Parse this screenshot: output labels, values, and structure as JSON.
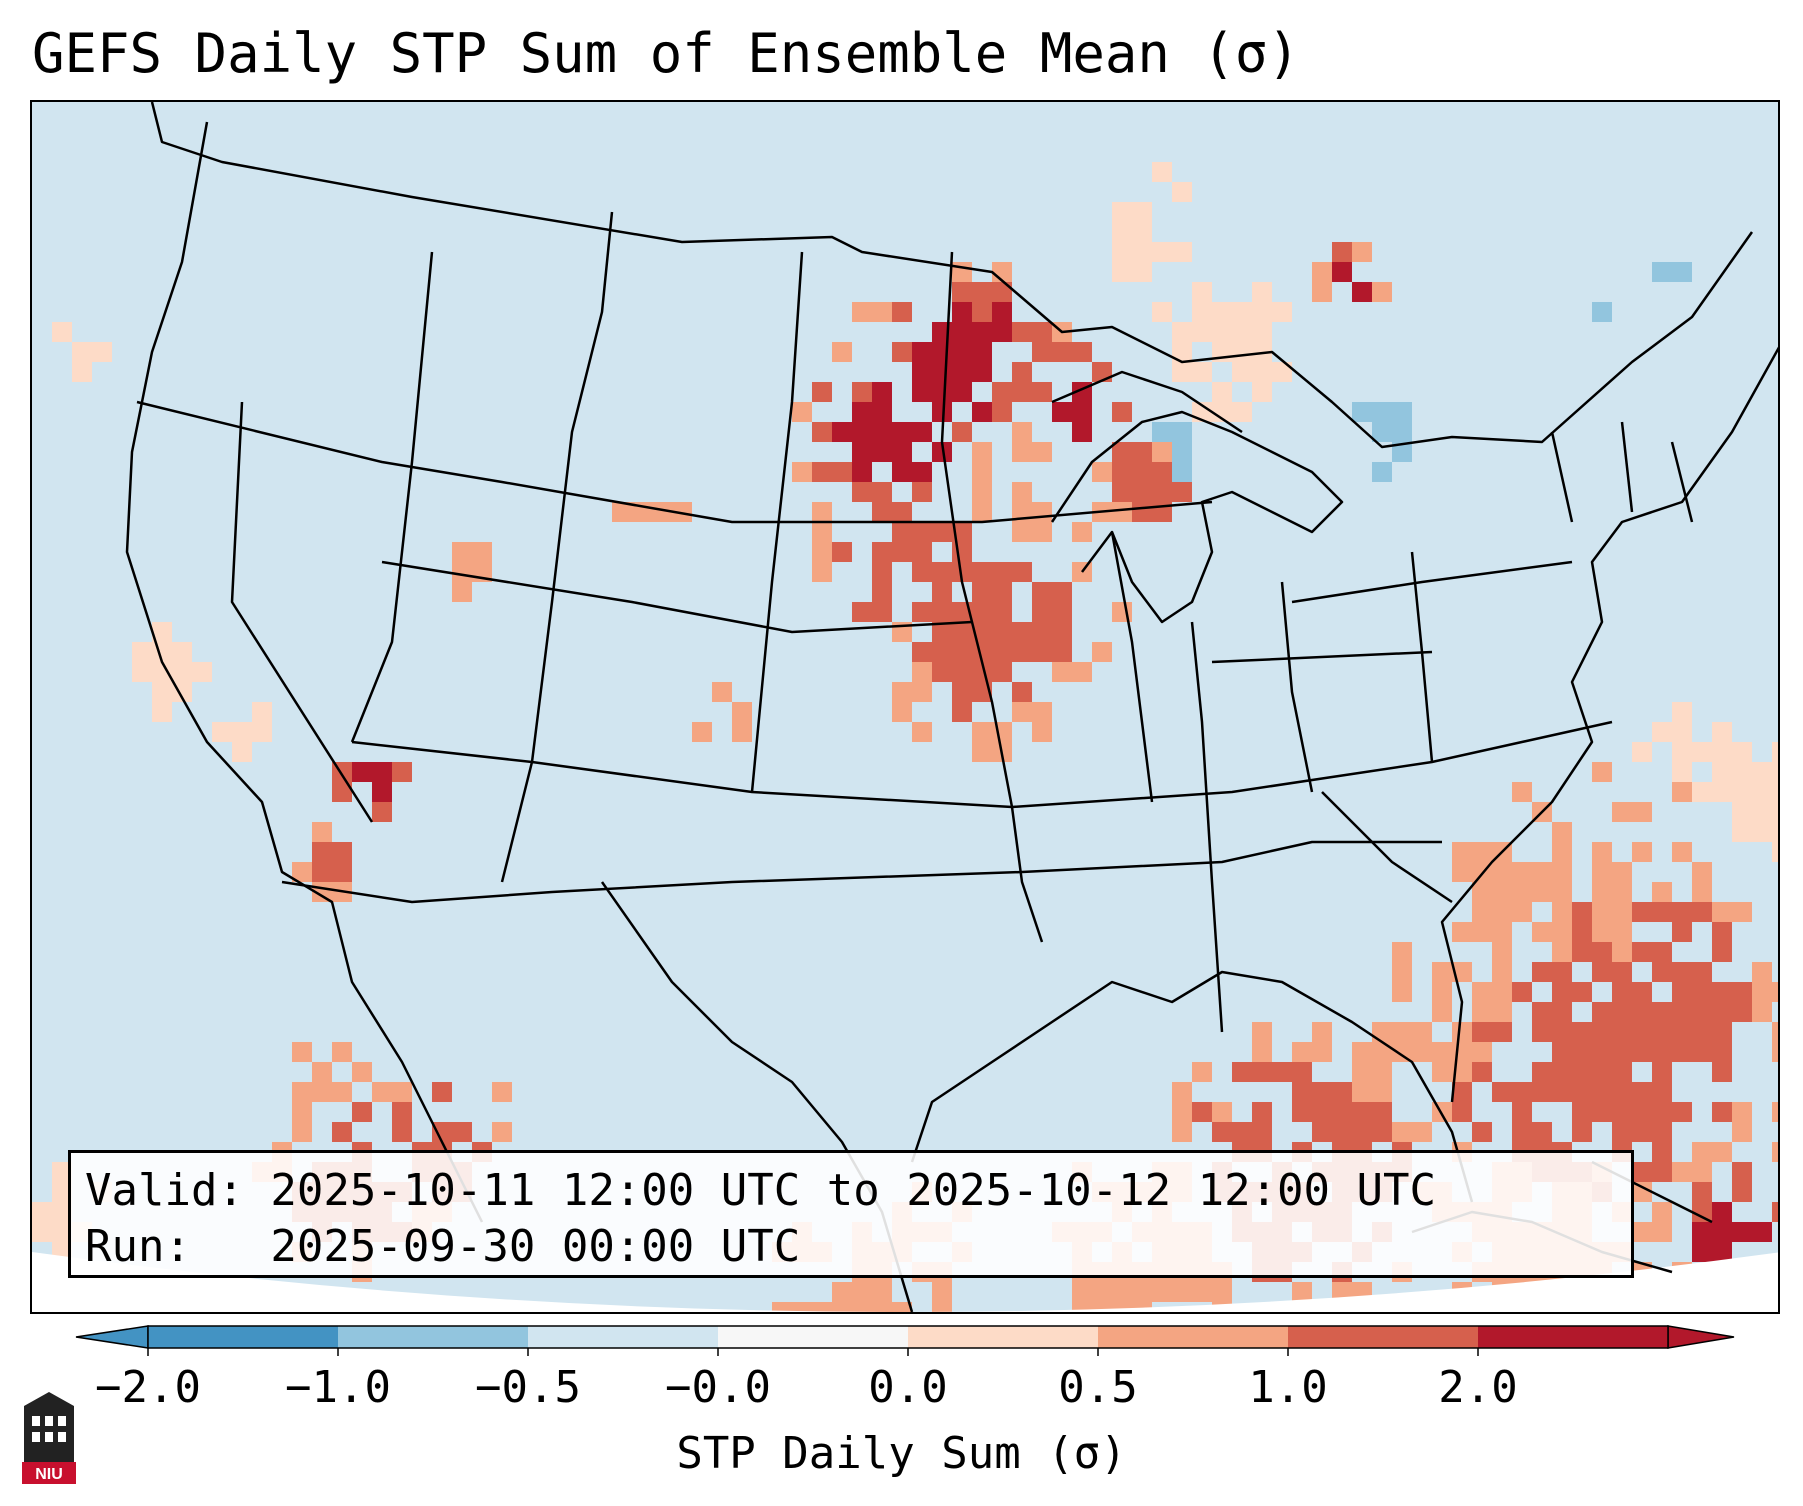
{
  "title": "GEFS Daily STP Sum of Ensemble Mean (σ)",
  "info": {
    "valid": "Valid: 2025-10-11 12:00 UTC to 2025-10-12 12:00 UTC",
    "run": "Run:   2025-09-30 00:00 UTC"
  },
  "colorbar": {
    "label": "STP Daily Sum (σ)",
    "ticks": [
      "−2.0",
      "−1.0",
      "−0.5",
      "−0.0",
      "0.0",
      "0.5",
      "1.0",
      "2.0"
    ],
    "colors": [
      "#4393c3",
      "#92c5de",
      "#d1e5f0",
      "#f7f7f7",
      "#fddbc7",
      "#f4a582",
      "#d6604d",
      "#b2182b"
    ],
    "extend": "both"
  },
  "logo": {
    "text": "NIU",
    "icon": "niu-logo-icon"
  }
}
